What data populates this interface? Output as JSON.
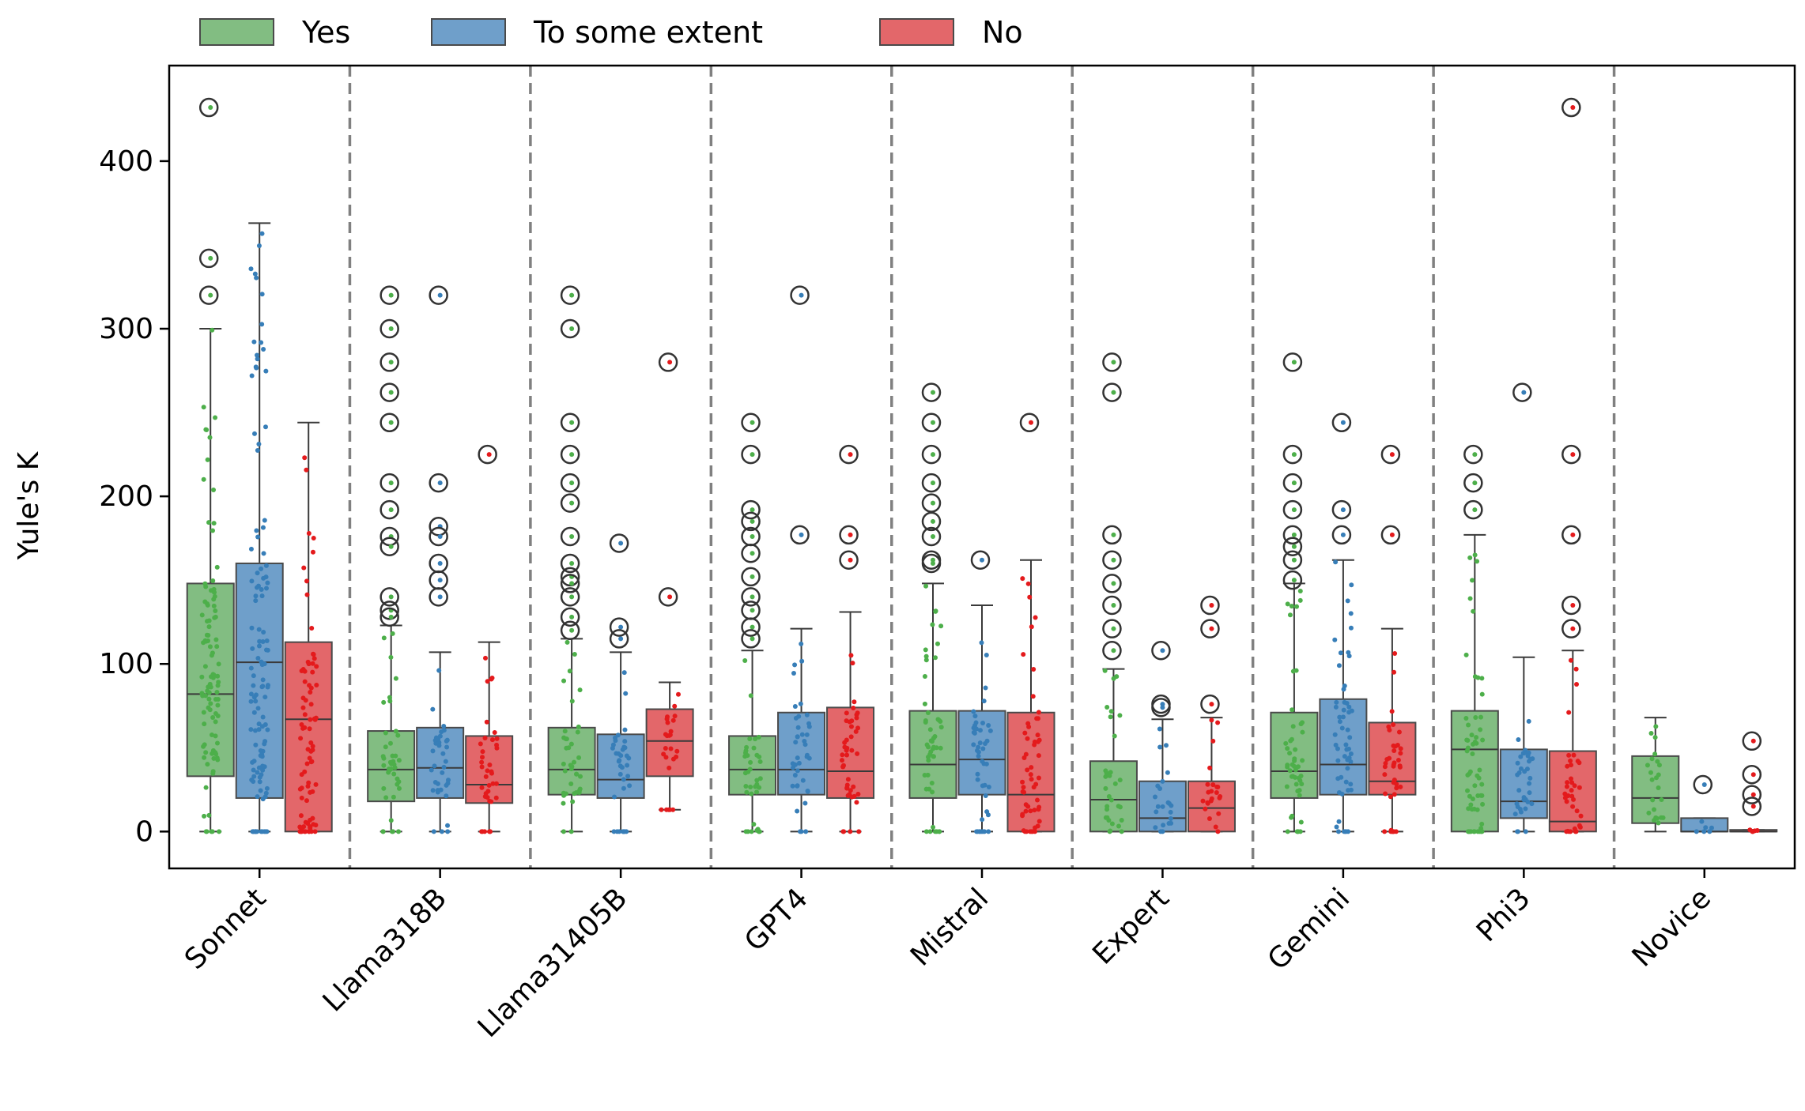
{
  "chart_data": {
    "type": "boxplot",
    "title": "",
    "xlabel": "",
    "ylabel": "Yule's K",
    "ylim": [
      -22,
      457
    ],
    "yticks": [
      0,
      100,
      200,
      300,
      400
    ],
    "categories": [
      "Sonnet",
      "Llama318B",
      "Llama31405B",
      "GPT4",
      "Mistral",
      "Expert",
      "Gemini",
      "Phi3",
      "Novice"
    ],
    "legend": {
      "position": "top-left, above plot",
      "entries": [
        {
          "label": "Yes",
          "color": "#4daf4a",
          "box_color": "#82bd82"
        },
        {
          "label": "To some extent",
          "color": "#377eb8",
          "box_color": "#6f9fca"
        },
        {
          "label": "No",
          "color": "#e41a1c",
          "box_color": "#e3676a"
        }
      ]
    },
    "groups": [
      {
        "category": "Sonnet",
        "boxes": [
          {
            "series": "Yes",
            "q1": 33,
            "median": 82,
            "q3": 148,
            "whisker_low": 0,
            "whisker_high": 300,
            "outliers": [
              432,
              342,
              320
            ]
          },
          {
            "series": "To some extent",
            "q1": 20,
            "median": 101,
            "q3": 160,
            "whisker_low": 0,
            "whisker_high": 363,
            "outliers": []
          },
          {
            "series": "No",
            "q1": 0,
            "median": 67,
            "q3": 113,
            "whisker_low": 0,
            "whisker_high": 244,
            "outliers": []
          }
        ]
      },
      {
        "category": "Llama318B",
        "boxes": [
          {
            "series": "Yes",
            "q1": 18,
            "median": 37,
            "q3": 60,
            "whisker_low": 0,
            "whisker_high": 123,
            "outliers": [
              320,
              300,
              280,
              262,
              244,
              208,
              192,
              176,
              170,
              140,
              132,
              128
            ]
          },
          {
            "series": "To some extent",
            "q1": 20,
            "median": 38,
            "q3": 62,
            "whisker_low": 0,
            "whisker_high": 107,
            "outliers": [
              320,
              208,
              182,
              176,
              160,
              150,
              140
            ]
          },
          {
            "series": "No",
            "q1": 17,
            "median": 28,
            "q3": 57,
            "whisker_low": 0,
            "whisker_high": 113,
            "outliers": [
              225
            ]
          }
        ]
      },
      {
        "category": "Llama31405B",
        "boxes": [
          {
            "series": "Yes",
            "q1": 22,
            "median": 37,
            "q3": 62,
            "whisker_low": 0,
            "whisker_high": 115,
            "outliers": [
              320,
              300,
              244,
              225,
              208,
              196,
              176,
              160,
              152,
              148,
              140,
              128,
              120
            ]
          },
          {
            "series": "To some extent",
            "q1": 20,
            "median": 31,
            "q3": 58,
            "whisker_low": 0,
            "whisker_high": 107,
            "outliers": [
              172,
              122,
              115
            ]
          },
          {
            "series": "No",
            "q1": 33,
            "median": 54,
            "q3": 73,
            "whisker_low": 13,
            "whisker_high": 89,
            "outliers": [
              280,
              140
            ]
          }
        ]
      },
      {
        "category": "GPT4",
        "boxes": [
          {
            "series": "Yes",
            "q1": 22,
            "median": 37,
            "q3": 57,
            "whisker_low": 0,
            "whisker_high": 108,
            "outliers": [
              244,
              225,
              192,
              185,
              176,
              166,
              152,
              140,
              132,
              122,
              115
            ]
          },
          {
            "series": "To some extent",
            "q1": 22,
            "median": 37,
            "q3": 71,
            "whisker_low": 0,
            "whisker_high": 121,
            "outliers": [
              320,
              177
            ]
          },
          {
            "series": "No",
            "q1": 20,
            "median": 36,
            "q3": 74,
            "whisker_low": 0,
            "whisker_high": 131,
            "outliers": [
              225,
              177,
              162
            ]
          }
        ]
      },
      {
        "category": "Mistral",
        "boxes": [
          {
            "series": "Yes",
            "q1": 20,
            "median": 40,
            "q3": 72,
            "whisker_low": 0,
            "whisker_high": 148,
            "outliers": [
              262,
              244,
              225,
              208,
              196,
              185,
              176,
              162,
              160
            ]
          },
          {
            "series": "To some extent",
            "q1": 22,
            "median": 43,
            "q3": 72,
            "whisker_low": 0,
            "whisker_high": 135,
            "outliers": [
              162
            ]
          },
          {
            "series": "No",
            "q1": 0,
            "median": 22,
            "q3": 71,
            "whisker_low": 0,
            "whisker_high": 162,
            "outliers": [
              244
            ]
          }
        ]
      },
      {
        "category": "Expert",
        "boxes": [
          {
            "series": "Yes",
            "q1": 0,
            "median": 19,
            "q3": 42,
            "whisker_low": 0,
            "whisker_high": 97,
            "outliers": [
              280,
              262,
              177,
              162,
              148,
              135,
              121,
              108
            ]
          },
          {
            "series": "To some extent",
            "q1": 0,
            "median": 8,
            "q3": 30,
            "whisker_low": 0,
            "whisker_high": 67,
            "outliers": [
              108,
              76,
              74
            ]
          },
          {
            "series": "No",
            "q1": 0,
            "median": 14,
            "q3": 30,
            "whisker_low": 0,
            "whisker_high": 68,
            "outliers": [
              135,
              121,
              76
            ]
          }
        ]
      },
      {
        "category": "Gemini",
        "boxes": [
          {
            "series": "Yes",
            "q1": 20,
            "median": 36,
            "q3": 71,
            "whisker_low": 0,
            "whisker_high": 148,
            "outliers": [
              280,
              225,
              208,
              192,
              177,
              170,
              162,
              150
            ]
          },
          {
            "series": "To some extent",
            "q1": 22,
            "median": 40,
            "q3": 79,
            "whisker_low": 0,
            "whisker_high": 162,
            "outliers": [
              244,
              192,
              177
            ]
          },
          {
            "series": "No",
            "q1": 22,
            "median": 30,
            "q3": 65,
            "whisker_low": 0,
            "whisker_high": 121,
            "outliers": [
              225,
              177
            ]
          }
        ]
      },
      {
        "category": "Phi3",
        "boxes": [
          {
            "series": "Yes",
            "q1": 0,
            "median": 49,
            "q3": 72,
            "whisker_low": 0,
            "whisker_high": 177,
            "outliers": [
              225,
              208,
              192
            ]
          },
          {
            "series": "To some extent",
            "q1": 8,
            "median": 18,
            "q3": 49,
            "whisker_low": 0,
            "whisker_high": 104,
            "outliers": [
              262
            ]
          },
          {
            "series": "No",
            "q1": 0,
            "median": 6,
            "q3": 48,
            "whisker_low": 0,
            "whisker_high": 108,
            "outliers": [
              432,
              225,
              177,
              135,
              121
            ]
          }
        ]
      },
      {
        "category": "Novice",
        "boxes": [
          {
            "series": "Yes",
            "q1": 5,
            "median": 20,
            "q3": 45,
            "whisker_low": 0,
            "whisker_high": 68,
            "outliers": []
          },
          {
            "series": "To some extent",
            "q1": 0,
            "median": 0,
            "q3": 8,
            "whisker_low": 0,
            "whisker_high": 8,
            "outliers": [
              28
            ]
          },
          {
            "series": "No",
            "q1": 0,
            "median": 0,
            "q3": 1,
            "whisker_low": 0,
            "whisker_high": 1,
            "outliers": [
              54,
              34,
              22,
              15
            ]
          }
        ]
      }
    ]
  }
}
